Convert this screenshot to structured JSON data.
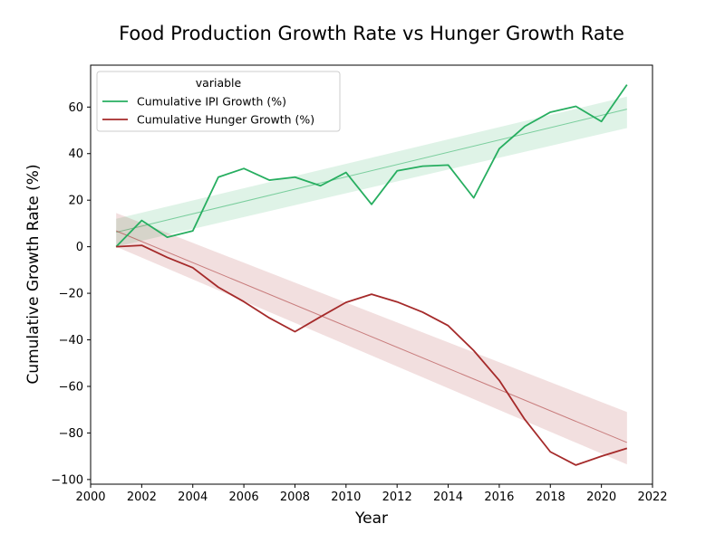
{
  "chart_data": {
    "type": "line",
    "title": "Food Production Growth Rate vs Hunger Growth Rate",
    "xlabel": "Year",
    "ylabel": "Cumulative Growth Rate (%)",
    "xlim": [
      2000,
      2022
    ],
    "ylim": [
      -102,
      78
    ],
    "x_ticks": [
      2000,
      2002,
      2004,
      2006,
      2008,
      2010,
      2012,
      2014,
      2016,
      2018,
      2020,
      2022
    ],
    "y_ticks": [
      -100,
      -80,
      -60,
      -40,
      -20,
      0,
      20,
      40,
      60
    ],
    "grid": false,
    "legend": {
      "title": "variable",
      "placement": "top-left"
    },
    "x": [
      2001,
      2002,
      2003,
      2004,
      2005,
      2006,
      2007,
      2008,
      2009,
      2010,
      2011,
      2012,
      2013,
      2014,
      2015,
      2016,
      2017,
      2018,
      2019,
      2020,
      2021
    ],
    "series": [
      {
        "name": "Cumulative IPI Growth (%)",
        "color": "#27ae60",
        "values": [
          0,
          11.3,
          4.1,
          6.8,
          29.9,
          33.6,
          28.6,
          29.9,
          26.2,
          31.9,
          18.2,
          32.6,
          34.6,
          35.1,
          21.0,
          42.1,
          51.7,
          57.8,
          60.3,
          53.8,
          69.6
        ],
        "trend": {
          "start": 6.2,
          "end": 59.1,
          "ci_start": [
            0,
            12
          ],
          "ci_end": [
            51,
            64.5
          ]
        }
      },
      {
        "name": "Cumulative Hunger Growth (%)",
        "color": "#a52a2a",
        "values": [
          0,
          0.6,
          -4.6,
          -9.0,
          -17.4,
          -23.6,
          -30.6,
          -36.5,
          -30.1,
          -23.9,
          -20.4,
          -23.7,
          -28.1,
          -33.9,
          -44.6,
          -57.4,
          -74.2,
          -88.1,
          -93.8,
          -90.0,
          -86.6
        ],
        "trend": {
          "start": 6.8,
          "end": -84.1,
          "ci_start": [
            0,
            14.5
          ],
          "ci_end": [
            -93.5,
            -71
          ]
        }
      }
    ]
  }
}
